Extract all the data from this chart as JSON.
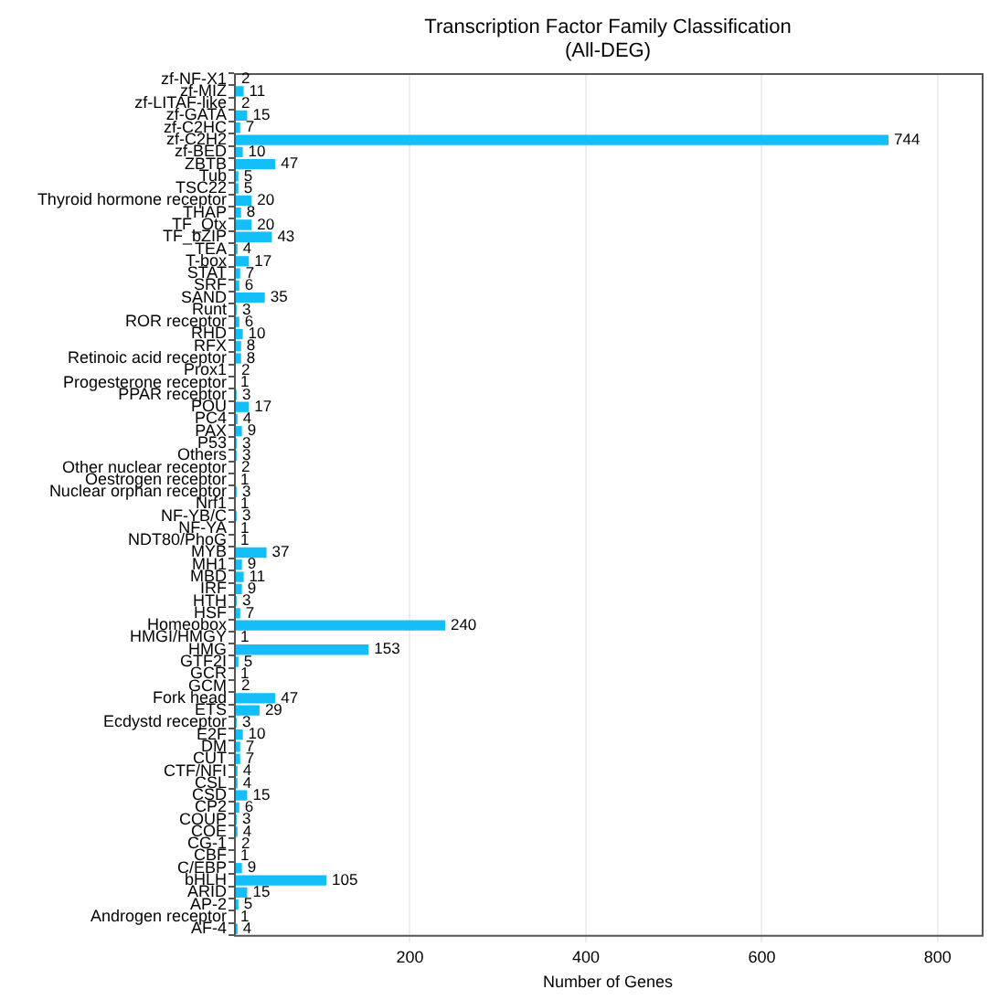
{
  "chart_data": {
    "type": "bar",
    "orientation": "horizontal",
    "title": "Transcription Factor Family Classification\n(All-DEG)",
    "xlabel": "Number of Genes",
    "categories": [
      "zf-NF-X1",
      "zf-MIZ",
      "zf-LITAF-like",
      "zf-GATA",
      "zf-C2HC",
      "zf-C2H2",
      "zf-BED",
      "ZBTB",
      "Tub",
      "TSC22",
      "Thyroid hormone receptor",
      "THAP",
      "TF_Otx",
      "TF_bZIP",
      "TEA",
      "T-box",
      "STAT",
      "SRF",
      "SAND",
      "Runt",
      "ROR receptor",
      "RHD",
      "RFX",
      "Retinoic acid receptor",
      "Prox1",
      "Progesterone receptor",
      "PPAR receptor",
      "POU",
      "PC4",
      "PAX",
      "P53",
      "Others",
      "Other nuclear receptor",
      "Oestrogen receptor",
      "Nuclear orphan receptor",
      "Nrf1",
      "NF-YB/C",
      "NF-YA",
      "NDT80/PhoG",
      "MYB",
      "MH1",
      "MBD",
      "IRF",
      "HTH",
      "HSF",
      "Homeobox",
      "HMGI/HMGY",
      "HMG",
      "GTF2I",
      "GCR",
      "GCM",
      "Fork head",
      "ETS",
      "Ecdystd receptor",
      "E2F",
      "DM",
      "CUT",
      "CTF/NFI",
      "CSL",
      "CSD",
      "CP2",
      "COUP",
      "COE",
      "CG-1",
      "CBF",
      "C/EBP",
      "bHLH",
      "ARID",
      "AP-2",
      "Androgen receptor",
      "AF-4"
    ],
    "values": [
      2,
      11,
      2,
      15,
      7,
      744,
      10,
      47,
      5,
      5,
      20,
      8,
      20,
      43,
      4,
      17,
      7,
      6,
      35,
      3,
      6,
      10,
      8,
      8,
      2,
      1,
      3,
      17,
      4,
      9,
      3,
      3,
      2,
      1,
      3,
      1,
      3,
      1,
      1,
      37,
      9,
      11,
      9,
      3,
      7,
      240,
      1,
      153,
      5,
      1,
      2,
      47,
      29,
      3,
      10,
      7,
      7,
      4,
      4,
      15,
      6,
      3,
      4,
      2,
      1,
      9,
      105,
      15,
      5,
      1,
      4
    ],
    "color": "#14bef8",
    "xlim": [
      0,
      850
    ],
    "xticks": [
      200,
      400,
      600,
      800
    ],
    "grid": "x",
    "data_labels": true,
    "legend": false
  }
}
